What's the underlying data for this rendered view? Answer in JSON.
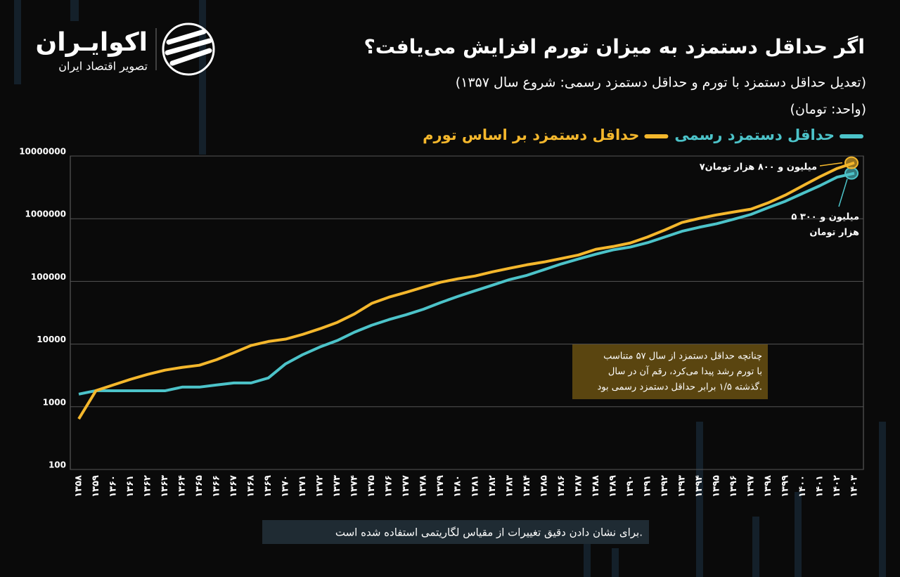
{
  "brand": {
    "name": "اکوایـران",
    "tagline": "تصویر اقتصاد ایران"
  },
  "chart_data": {
    "type": "line",
    "title": "اگر حداقل دستمزد به میزان تورم افزایش می‌یافت؟",
    "subtitle": "(تعدیل حداقل دستمزد با تورم و حداقل دستمزد رسمی: شروع سال ۱۳۵۷)",
    "unit": "(واحد: تومان)",
    "categories": [
      "۱۳۵۸",
      "۱۳۵۹",
      "۱۳۶۰",
      "۱۳۶۱",
      "۱۳۶۲",
      "۱۳۶۳",
      "۱۳۶۴",
      "۱۳۶۵",
      "۱۳۶۶",
      "۱۳۶۷",
      "۱۳۶۸",
      "۱۳۶۹",
      "۱۳۷۰",
      "۱۳۷۱",
      "۱۳۷۲",
      "۱۳۷۳",
      "۱۳۷۴",
      "۱۳۷۵",
      "۱۳۷۶",
      "۱۳۷۷",
      "۱۳۷۸",
      "۱۳۷۹",
      "۱۳۸۰",
      "۱۳۸۱",
      "۱۳۸۲",
      "۱۳۸۳",
      "۱۳۸۴",
      "۱۳۸۵",
      "۱۳۸۶",
      "۱۳۸۷",
      "۱۳۸۸",
      "۱۳۸۹",
      "۱۳۹۰",
      "۱۳۹۱",
      "۱۳۹۲",
      "۱۳۹۳",
      "۱۳۹۴",
      "۱۳۹۵",
      "۱۳۹۶",
      "۱۳۹۷",
      "۱۳۹۸",
      "۱۳۹۹",
      "۱۴۰۰",
      "۱۴۰۱",
      "۱۴۰۲",
      "۱۴۰۳"
    ],
    "series": [
      {
        "name": "حداقل دستمزد رسمی",
        "color": "#4cc3c9",
        "values": [
          1590,
          1810,
          1800,
          1800,
          1800,
          1800,
          2060,
          2060,
          2230,
          2400,
          2400,
          2880,
          4840,
          6800,
          9000,
          11400,
          15500,
          20000,
          24600,
          29400,
          36000,
          46000,
          57600,
          71000,
          87000,
          107000,
          125000,
          154000,
          190000,
          228000,
          272000,
          318000,
          353000,
          414000,
          510000,
          630000,
          730000,
          830000,
          980000,
          1170000,
          1500000,
          1900000,
          2530000,
          3360000,
          4600000,
          5300000
        ]
      },
      {
        "name": "حداقل دستمزد بر اساس تورم",
        "color": "#f4b72c",
        "values": [
          640,
          1810,
          2230,
          2740,
          3290,
          3840,
          4250,
          4600,
          5650,
          7300,
          9500,
          11000,
          12000,
          14300,
          17600,
          22200,
          30300,
          44600,
          56000,
          67000,
          81000,
          97000,
          110000,
          122000,
          142000,
          162000,
          184000,
          204000,
          232000,
          264000,
          325000,
          360000,
          410000,
          510000,
          660000,
          870000,
          1010000,
          1150000,
          1280000,
          1420000,
          1790000,
          2380000,
          3340000,
          4670000,
          6330000,
          7800000
        ]
      }
    ],
    "ylim": [
      100,
      10000000
    ],
    "yticks": [
      100,
      1000,
      10000,
      100000,
      1000000,
      10000000
    ],
    "log_scale": true,
    "grid": true,
    "annotations": {
      "end_inflation": [
        "۷میلیون و ۸۰۰ هزار تومان"
      ],
      "end_official": [
        "۵ میلیون و ۳۰۰",
        "هزار تومان"
      ],
      "box": [
        "چنانچه حداقل دستمزد از سال ۵۷ متناسب",
        "با تورم رشد پیدا می‌کرد، رقم آن در سال",
        "گذشته ۱/۵ برابر حداقل دستمزد رسمی بود."
      ],
      "footnote": "برای نشان دادن دقیق تغییرات از مقیاس لگاریتمی استفاده شده است."
    }
  }
}
